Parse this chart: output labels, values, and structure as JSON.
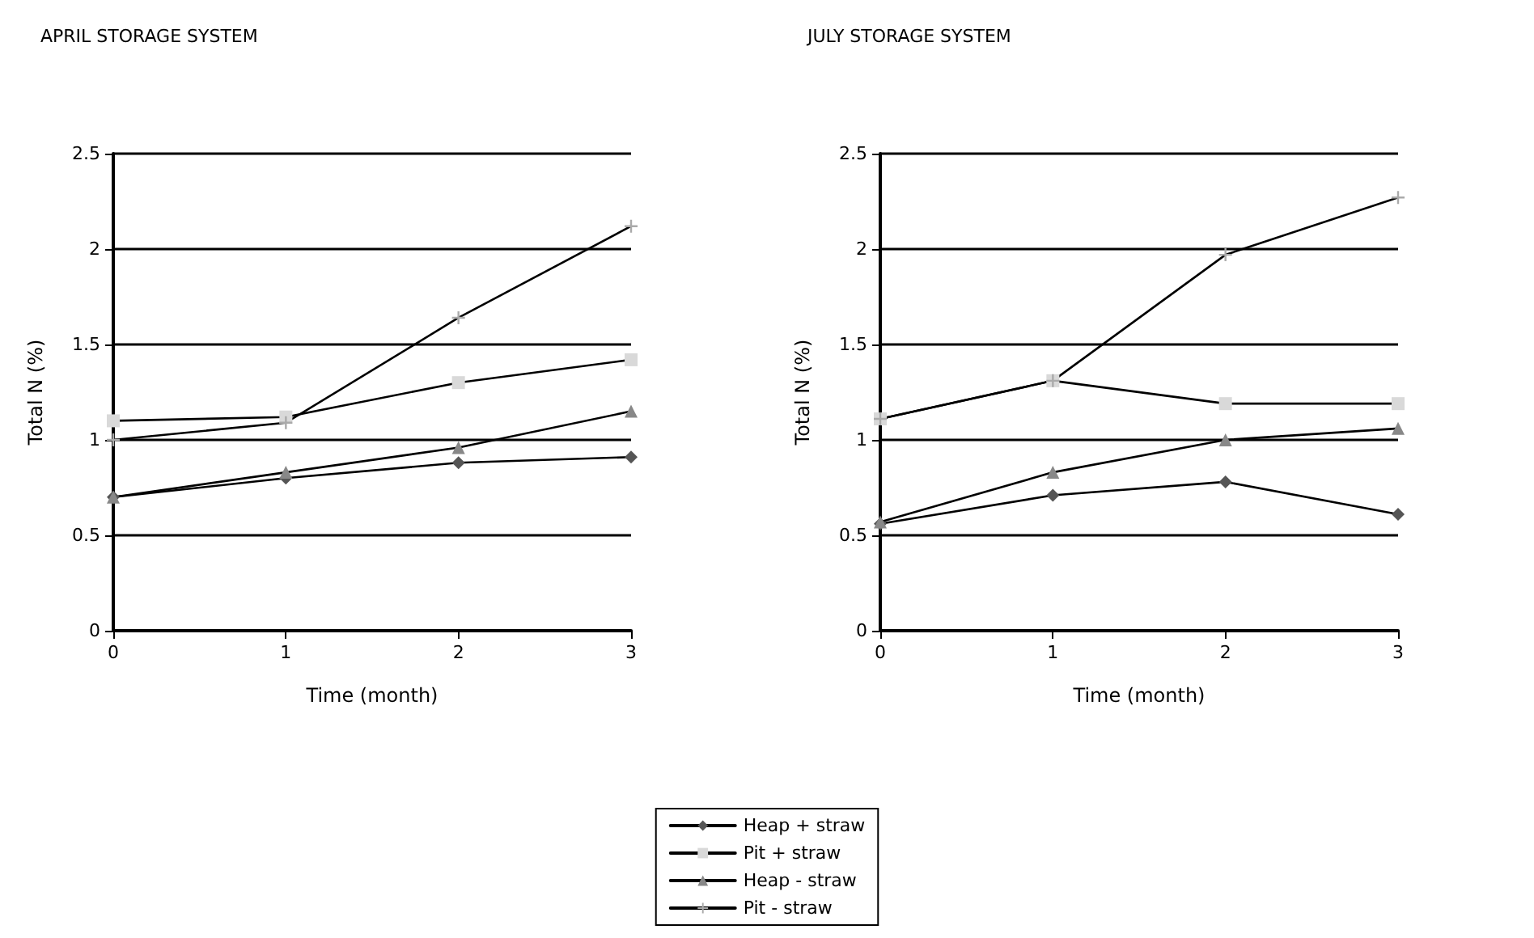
{
  "chart_data": [
    {
      "type": "line",
      "title": "APRIL STORAGE SYSTEM",
      "xlabel": "Time (month)",
      "ylabel": "Total N (%)",
      "x": [
        0,
        1,
        2,
        3
      ],
      "xlim": [
        0,
        3
      ],
      "xticks": [
        0,
        1,
        2,
        3
      ],
      "ylim": [
        0,
        2.5
      ],
      "yticks": [
        0,
        0.5,
        1,
        1.5,
        2,
        2.5
      ],
      "grid": "y",
      "legend": "bottom",
      "series": [
        {
          "name": "Heap + straw",
          "color": "#555555",
          "marker": "diamond",
          "values": [
            0.7,
            0.8,
            0.88,
            0.91
          ]
        },
        {
          "name": "Pit + straw",
          "color": "#d9d9d9",
          "marker": "square",
          "values": [
            1.1,
            1.12,
            1.3,
            1.42
          ]
        },
        {
          "name": "Heap - straw",
          "color": "#888888",
          "marker": "triangle",
          "values": [
            0.7,
            0.83,
            0.96,
            1.15
          ]
        },
        {
          "name": "Pit - straw",
          "color": "#aaaaaa",
          "marker": "cross",
          "values": [
            1.0,
            1.09,
            1.64,
            2.12
          ]
        }
      ]
    },
    {
      "type": "line",
      "title": "JULY STORAGE SYSTEM",
      "xlabel": "Time (month)",
      "ylabel": "Total N (%)",
      "x": [
        0,
        1,
        2,
        3
      ],
      "xlim": [
        0,
        3
      ],
      "xticks": [
        0,
        1,
        2,
        3
      ],
      "ylim": [
        0,
        2.5
      ],
      "yticks": [
        0,
        0.5,
        1,
        1.5,
        2,
        2.5
      ],
      "grid": "y",
      "series": [
        {
          "color": "#555555",
          "marker": "diamond",
          "values": [
            0.56,
            0.71,
            0.78,
            0.61
          ]
        },
        {
          "color": "#d9d9d9",
          "marker": "square",
          "values": [
            1.11,
            1.31,
            1.19,
            1.19
          ]
        },
        {
          "color": "#888888",
          "marker": "triangle",
          "values": [
            0.57,
            0.83,
            1.0,
            1.06
          ]
        },
        {
          "color": "#aaaaaa",
          "marker": "cross",
          "values": [
            1.11,
            1.31,
            1.97,
            2.27
          ]
        }
      ]
    }
  ]
}
